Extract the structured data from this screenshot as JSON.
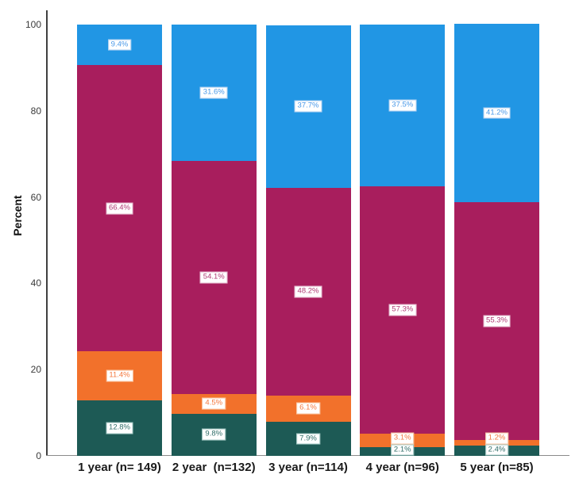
{
  "figure": {
    "background": "#ffffff"
  },
  "chart_data": {
    "type": "bar",
    "subtype": "stacked-percent",
    "title": "",
    "xlabel": "",
    "ylabel": "Percent",
    "ylim": [
      0,
      100
    ],
    "yticks": [
      0,
      20,
      40,
      60,
      80,
      100
    ],
    "grid": false,
    "legend_position": "none",
    "categories": [
      "1 year (n= 149)",
      "2 year  (n=132)",
      "3 year (n=114)",
      "4 year (n=96)",
      "5 year (n=85)"
    ],
    "series": [
      {
        "name": "teal-bottom-segment",
        "color": "#1d5a55",
        "label_text_color": "#2f6d68",
        "label_border_color": "#9cc4c0",
        "values": [
          12.8,
          9.8,
          7.9,
          2.1,
          2.4
        ]
      },
      {
        "name": "orange-segment",
        "color": "#f2712b",
        "label_text_color": "#f4793f",
        "label_border_color": "#f8c29e",
        "values": [
          11.4,
          4.5,
          6.1,
          3.1,
          1.2
        ]
      },
      {
        "name": "maroon-segment",
        "color": "#a81e5d",
        "label_text_color": "#b03a74",
        "label_border_color": "#e2b3ca",
        "values": [
          66.4,
          54.1,
          48.2,
          57.3,
          55.3
        ]
      },
      {
        "name": "blue-top-segment",
        "color": "#2196e4",
        "label_text_color": "#4898e8",
        "label_border_color": "#abcdf0",
        "values": [
          9.4,
          31.6,
          37.7,
          37.5,
          41.2
        ]
      }
    ],
    "value_labels": {
      "suffix": "%",
      "decimals": 1,
      "box_background": "#ffffff"
    },
    "axis_colors": {
      "y_axis_line": "#404040",
      "x_axis_line": "#8a8a8a",
      "tick_text": "#3a3a3a",
      "category_text": "#1a1a1a"
    }
  }
}
